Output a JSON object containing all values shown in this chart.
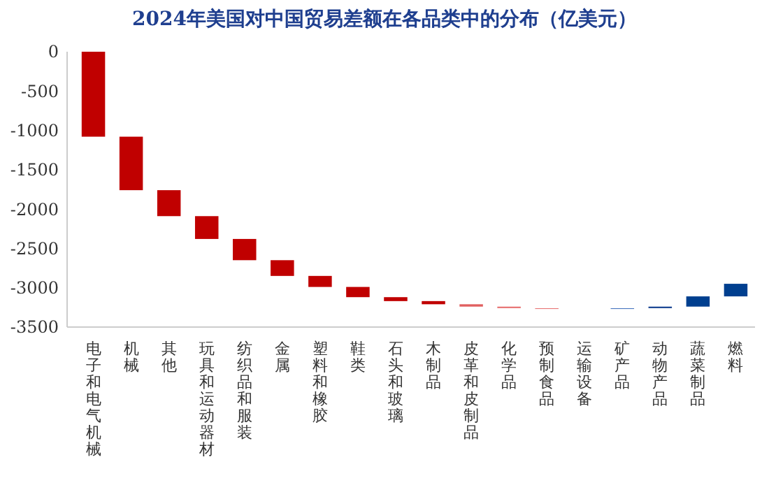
{
  "chart_data": {
    "type": "bar",
    "title": "2024年美国对中国贸易差额在各品类中的分布（亿美元）",
    "categories": [
      "电子和电气机械",
      "机械",
      "其他",
      "玩具和运动器材",
      "纺织品和服装",
      "金属",
      "塑料和橡胶",
      "鞋类",
      "石头和玻璃",
      "木制品",
      "皮革和皮制品",
      "化学品",
      "预制食品",
      "运输设备",
      "矿产品",
      "动物产品",
      "蔬菜制品",
      "燃料"
    ],
    "base": [
      0,
      -1080,
      -1760,
      -2090,
      -2380,
      -2650,
      -2850,
      -2990,
      -3120,
      -3170,
      -3210,
      -3240,
      -3260,
      null,
      -3270,
      -3260,
      -3240,
      -3110
    ],
    "values": [
      -1080,
      -680,
      -330,
      -290,
      -270,
      -200,
      -140,
      -130,
      -50,
      -40,
      -30,
      -20,
      -10,
      null,
      10,
      20,
      130,
      160
    ],
    "colors": [
      "#c00000",
      "#c00000",
      "#c00000",
      "#c00000",
      "#c00000",
      "#c00000",
      "#c00000",
      "#c00000",
      "#c00000",
      "#c00000",
      "#e06060",
      "#e87878",
      "#e87878",
      null,
      "#4a78c0",
      "#1f4a96",
      "#003f8f",
      "#003f8f"
    ],
    "ylim": [
      -3500,
      0
    ],
    "yticks": [
      0,
      -500,
      -1000,
      -1500,
      -2000,
      -2500,
      -3000,
      -3500
    ],
    "grid": false
  }
}
